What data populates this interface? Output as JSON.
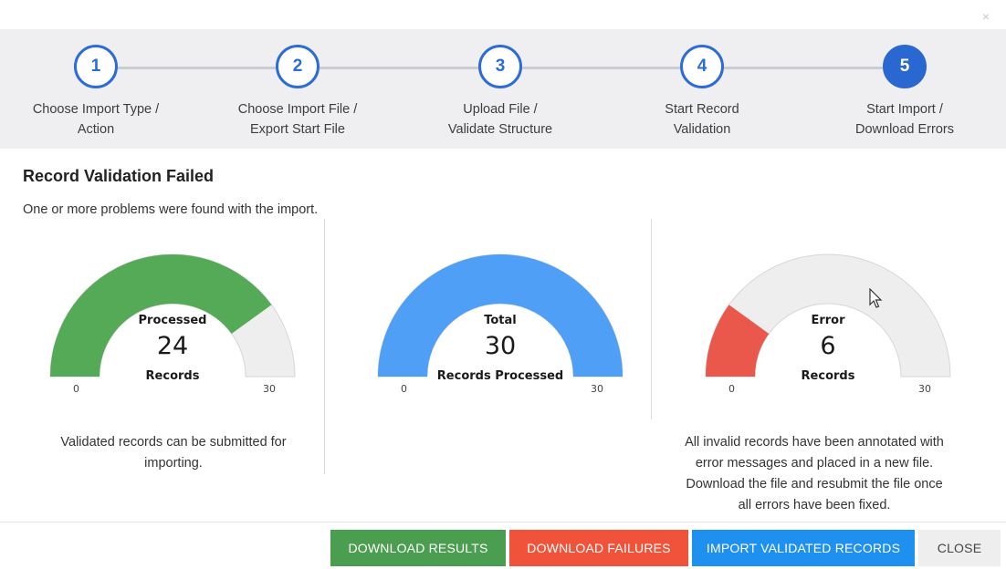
{
  "dialog": {
    "close_glyph": "×"
  },
  "steps": [
    {
      "number": "1",
      "line1": "Choose Import Type /",
      "line2": "Action"
    },
    {
      "number": "2",
      "line1": "Choose Import File /",
      "line2": "Export Start File"
    },
    {
      "number": "3",
      "line1": "Upload File /",
      "line2": "Validate Structure"
    },
    {
      "number": "4",
      "line1": "Start Record",
      "line2": "Validation"
    },
    {
      "number": "5",
      "line1": "Start Import /",
      "line2": "Download Errors"
    }
  ],
  "active_step": 5,
  "heading": "Record Validation Failed",
  "subtext": "One or more problems were found with the import.",
  "gauges": {
    "processed": {
      "title": "Processed",
      "value": "24",
      "unit": "Records",
      "min": "0",
      "max": "30",
      "amount": 24,
      "total": 30,
      "color": "#54aa57"
    },
    "total": {
      "title": "Total",
      "value": "30",
      "unit": "Records Processed",
      "min": "0",
      "max": "30",
      "amount": 30,
      "total": 30,
      "color": "#4f9ff7"
    },
    "error": {
      "title": "Error",
      "value": "6",
      "unit": "Records",
      "min": "0",
      "max": "30",
      "amount": 6,
      "total": 30,
      "color": "#e9584a"
    }
  },
  "notes": {
    "processed_line1": "Validated records can be submitted for",
    "processed_line2": "importing.",
    "error_line1": "All invalid records have been annotated with",
    "error_line2": "error messages and placed in a new file.",
    "error_line3": "Download the file and resubmit the file once",
    "error_line4": "all errors have been fixed."
  },
  "buttons": {
    "download_results": "DOWNLOAD RESULTS",
    "download_failures": "DOWNLOAD FAILURES",
    "import_validated": "IMPORT VALIDATED RECORDS",
    "close": "CLOSE"
  },
  "colors": {
    "step_blue": "#2d6bd6",
    "track": "#eeeeee"
  }
}
